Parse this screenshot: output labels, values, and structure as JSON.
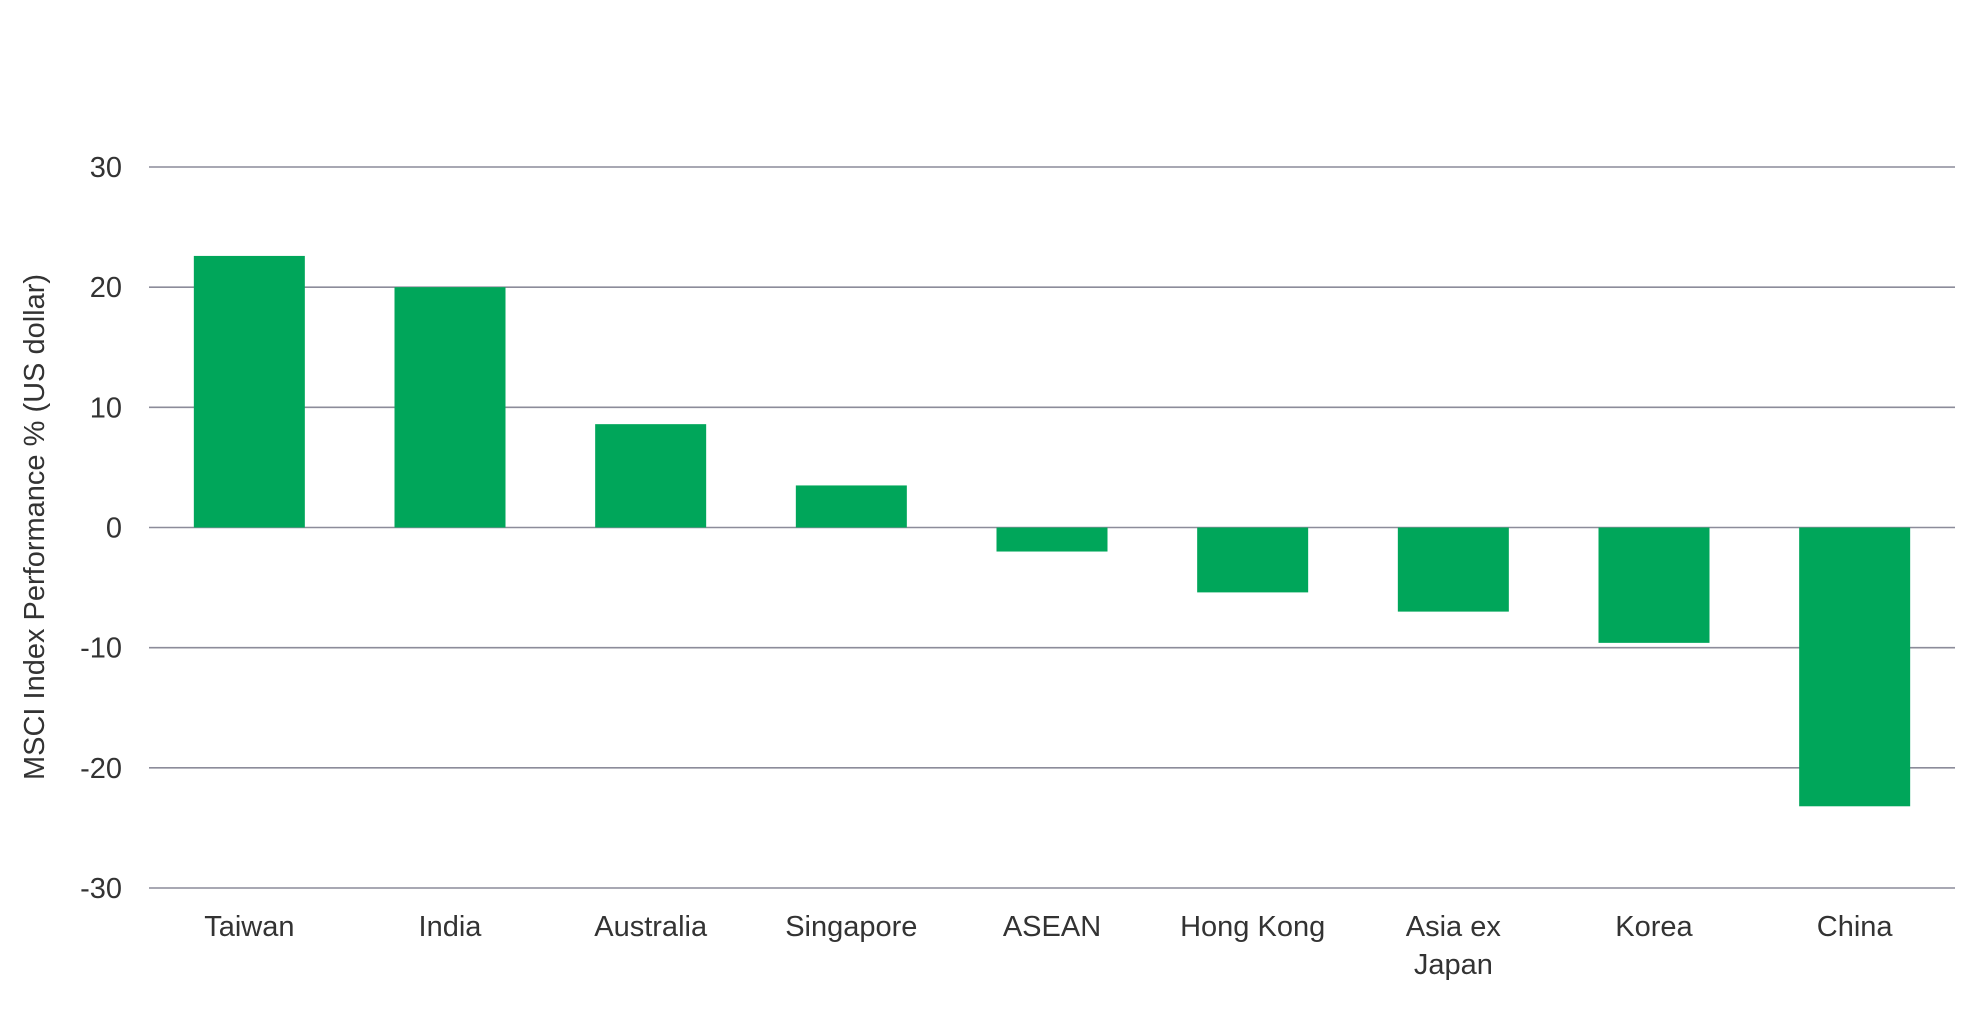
{
  "chart_data": {
    "type": "bar",
    "title": "",
    "xlabel": "",
    "ylabel": "MSCI Index Performance % (US dollar)",
    "categories": [
      "Taiwan",
      "India",
      "Australia",
      "Singapore",
      "ASEAN",
      "Hong Kong",
      "Asia ex Japan",
      "Korea",
      "China"
    ],
    "category_label_lines": [
      [
        "Taiwan"
      ],
      [
        "India"
      ],
      [
        "Australia"
      ],
      [
        "Singapore"
      ],
      [
        "ASEAN"
      ],
      [
        "Hong Kong"
      ],
      [
        "Asia ex",
        "Japan"
      ],
      [
        "Korea"
      ],
      [
        "China"
      ]
    ],
    "values": [
      22.6,
      20.0,
      8.6,
      3.5,
      -2.0,
      -5.4,
      -7.0,
      -9.6,
      -23.2
    ],
    "ylim": [
      -30,
      30
    ],
    "yticks": [
      30,
      20,
      10,
      0,
      -10,
      -20,
      -30
    ],
    "ytick_labels": [
      "30",
      "20",
      "10",
      "0",
      "-10",
      "-20",
      "-30"
    ],
    "grid": true,
    "legend": "none",
    "colors": {
      "bar": "#00A65A",
      "grid": "#8C8C9A",
      "text": "#333333"
    }
  }
}
